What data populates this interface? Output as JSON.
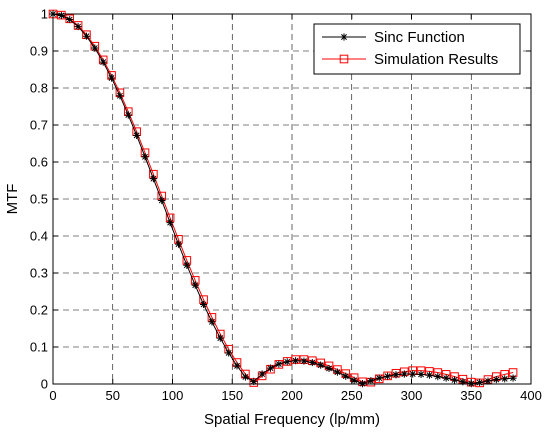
{
  "chart_data": {
    "type": "line",
    "title": "",
    "xlabel": "Spatial Frequency (lp/mm)",
    "ylabel": "MTF",
    "xlim": [
      0,
      400
    ],
    "ylim": [
      0,
      1
    ],
    "xticks": [
      0,
      50,
      100,
      150,
      200,
      250,
      300,
      350,
      400
    ],
    "yticks": [
      0,
      0.1,
      0.2,
      0.3,
      0.4,
      0.5,
      0.6,
      0.7,
      0.8,
      0.9,
      1
    ],
    "xtick_labels": [
      "0",
      "50",
      "100",
      "150",
      "200",
      "250",
      "300",
      "350",
      "400"
    ],
    "ytick_labels": [
      "0",
      "0.1",
      "0.2",
      "0.3",
      "0.4",
      "0.5",
      "0.6",
      "0.7",
      "0.8",
      "0.9",
      "1"
    ],
    "grid": true,
    "legend_position": "top-right",
    "series": [
      {
        "name": "Sinc Function",
        "color": "#000000",
        "marker": "asterisk",
        "x": [
          0,
          7,
          14,
          21,
          28,
          35,
          42,
          49,
          56,
          63,
          70,
          77,
          84,
          91,
          98,
          105,
          112,
          119,
          126,
          133,
          140,
          147,
          154,
          161,
          168,
          175,
          182,
          189,
          196,
          203,
          210,
          217,
          224,
          231,
          238,
          245,
          252,
          259,
          266,
          273,
          280,
          287,
          294,
          301,
          308,
          315,
          322,
          329,
          336,
          343,
          350,
          357,
          364,
          371,
          378,
          385
        ],
        "y": [
          1,
          0.996,
          0.985,
          0.966,
          0.94,
          0.908,
          0.87,
          0.827,
          0.779,
          0.727,
          0.672,
          0.614,
          0.555,
          0.496,
          0.436,
          0.378,
          0.321,
          0.267,
          0.215,
          0.168,
          0.124,
          0.084,
          0.049,
          0.019,
          0.007,
          0.027,
          0.043,
          0.054,
          0.06,
          0.063,
          0.062,
          0.058,
          0.051,
          0.042,
          0.032,
          0.021,
          0.01,
          0.001,
          0.009,
          0.016,
          0.021,
          0.025,
          0.027,
          0.027,
          0.026,
          0.024,
          0.02,
          0.016,
          0.011,
          0.006,
          0.001,
          0.004,
          0.008,
          0.012,
          0.014,
          0.016
        ]
      },
      {
        "name": "Simulation Results",
        "color": "#ff0000",
        "marker": "square",
        "x": [
          0,
          7,
          14,
          21,
          28,
          35,
          42,
          49,
          56,
          63,
          70,
          77,
          84,
          91,
          98,
          105,
          112,
          119,
          126,
          133,
          140,
          147,
          154,
          161,
          168,
          175,
          182,
          189,
          196,
          203,
          210,
          217,
          224,
          231,
          238,
          245,
          252,
          259,
          266,
          273,
          280,
          287,
          294,
          301,
          308,
          315,
          322,
          329,
          336,
          343,
          350,
          357,
          364,
          371,
          378,
          385
        ],
        "y": [
          1,
          0.997,
          0.987,
          0.969,
          0.944,
          0.913,
          0.876,
          0.834,
          0.787,
          0.736,
          0.682,
          0.625,
          0.567,
          0.508,
          0.449,
          0.391,
          0.334,
          0.28,
          0.228,
          0.18,
          0.135,
          0.094,
          0.058,
          0.027,
          0.004,
          0.022,
          0.04,
          0.053,
          0.061,
          0.066,
          0.066,
          0.063,
          0.057,
          0.049,
          0.039,
          0.028,
          0.017,
          0.006,
          0.005,
          0.014,
          0.022,
          0.029,
          0.033,
          0.036,
          0.036,
          0.034,
          0.031,
          0.026,
          0.02,
          0.013,
          0.005,
          0.003,
          0.012,
          0.02,
          0.026,
          0.031
        ]
      }
    ]
  }
}
